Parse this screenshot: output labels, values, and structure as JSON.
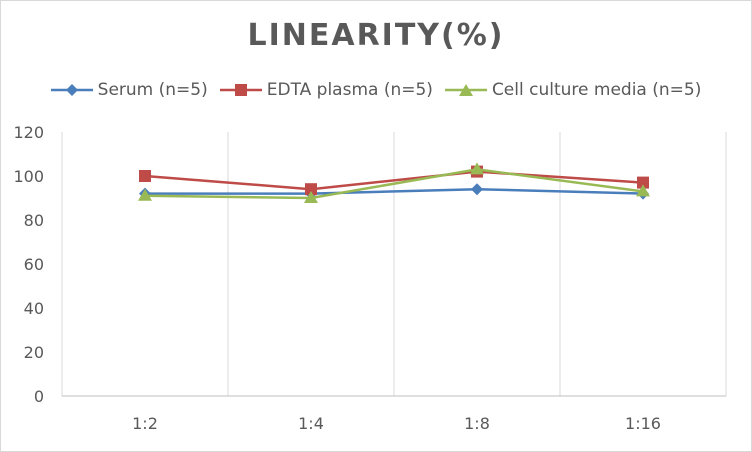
{
  "chart_data": {
    "type": "line",
    "title": "LINEARITY(%)",
    "xlabel": "",
    "ylabel": "",
    "categories": [
      "1:2",
      "1:4",
      "1:8",
      "1:16"
    ],
    "ylim": [
      0,
      120
    ],
    "yticks": [
      0,
      20,
      40,
      60,
      80,
      100,
      120
    ],
    "grid": "vertical",
    "legend_position": "top",
    "series": [
      {
        "name": "Serum (n=5)",
        "values": [
          92,
          92,
          94,
          92
        ],
        "color": "#4a7ebb",
        "marker": "diamond"
      },
      {
        "name": "EDTA plasma (n=5)",
        "values": [
          100,
          94,
          102,
          97
        ],
        "color": "#be4b48",
        "marker": "square"
      },
      {
        "name": "Cell culture media (n=5)",
        "values": [
          91,
          90,
          103,
          93
        ],
        "color": "#98b954",
        "marker": "triangle"
      }
    ]
  }
}
